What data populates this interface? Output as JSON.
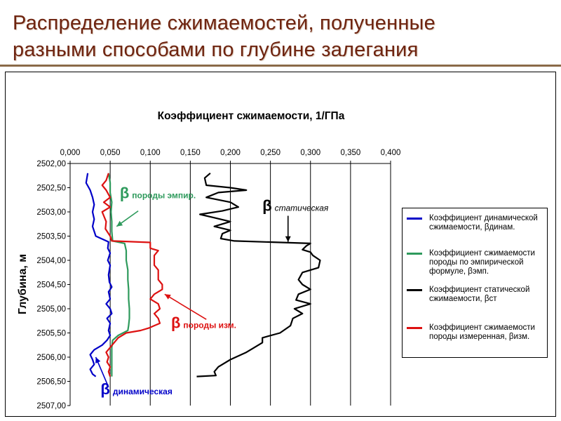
{
  "slide": {
    "title_line1": "Распределение сжимаемостей, полученные",
    "title_line2": "разными способами по глубине залегания"
  },
  "chart_data": {
    "type": "line",
    "title": "Коэффициент сжимаемости, 1/ГПа",
    "ylabel": "Глубина, м",
    "xlabel": "",
    "x_axis_position": "top",
    "y_inverted": true,
    "xlim": [
      0,
      0.4
    ],
    "ylim": [
      2502,
      2507
    ],
    "x_ticks": [
      "0,000",
      "0,050",
      "0,100",
      "0,150",
      "0,200",
      "0,250",
      "0,300",
      "0,350",
      "0,400"
    ],
    "y_ticks": [
      "2502,00",
      "2502,50",
      "2503,00",
      "2503,50",
      "2504,00",
      "2504,50",
      "2505,00",
      "2505,50",
      "2506,00",
      "2506,50",
      "2507,00"
    ],
    "grid": "vertical",
    "legend_position": "right",
    "series": [
      {
        "name": "Коэффициент динамической сжимаемости, βдинам.",
        "color": "#0000c8",
        "points": [
          [
            0.022,
            2502.2
          ],
          [
            0.02,
            2502.4
          ],
          [
            0.025,
            2502.55
          ],
          [
            0.028,
            2502.7
          ],
          [
            0.03,
            2502.85
          ],
          [
            0.028,
            2503.0
          ],
          [
            0.03,
            2503.15
          ],
          [
            0.028,
            2503.3
          ],
          [
            0.032,
            2503.5
          ],
          [
            0.048,
            2503.62
          ],
          [
            0.047,
            2503.75
          ],
          [
            0.05,
            2503.85
          ],
          [
            0.047,
            2504.0
          ],
          [
            0.05,
            2504.1
          ],
          [
            0.048,
            2504.3
          ],
          [
            0.049,
            2504.45
          ],
          [
            0.052,
            2504.55
          ],
          [
            0.048,
            2504.65
          ],
          [
            0.05,
            2504.8
          ],
          [
            0.045,
            2504.9
          ],
          [
            0.05,
            2505.0
          ],
          [
            0.052,
            2505.1
          ],
          [
            0.046,
            2505.2
          ],
          [
            0.05,
            2505.3
          ],
          [
            0.048,
            2505.45
          ],
          [
            0.05,
            2505.55
          ],
          [
            0.046,
            2505.65
          ],
          [
            0.04,
            2505.75
          ],
          [
            0.03,
            2505.85
          ],
          [
            0.025,
            2505.95
          ],
          [
            0.028,
            2506.05
          ],
          [
            0.03,
            2506.15
          ],
          [
            0.025,
            2506.25
          ],
          [
            0.028,
            2506.35
          ],
          [
            0.032,
            2506.4
          ]
        ]
      },
      {
        "name": "Коэффициент сжимаемости породы по эмпирической формуле, βэмп.",
        "color": "#2e9a5c",
        "points": [
          [
            0.048,
            2502.2
          ],
          [
            0.05,
            2502.4
          ],
          [
            0.05,
            2502.6
          ],
          [
            0.052,
            2502.8
          ],
          [
            0.051,
            2503.0
          ],
          [
            0.052,
            2503.2
          ],
          [
            0.052,
            2503.4
          ],
          [
            0.053,
            2503.6
          ],
          [
            0.068,
            2503.65
          ],
          [
            0.07,
            2503.8
          ],
          [
            0.07,
            2504.0
          ],
          [
            0.072,
            2504.2
          ],
          [
            0.072,
            2504.4
          ],
          [
            0.073,
            2504.6
          ],
          [
            0.073,
            2504.8
          ],
          [
            0.074,
            2505.0
          ],
          [
            0.074,
            2505.2
          ],
          [
            0.073,
            2505.35
          ],
          [
            0.072,
            2505.45
          ],
          [
            0.06,
            2505.55
          ],
          [
            0.053,
            2505.65
          ],
          [
            0.052,
            2505.8
          ],
          [
            0.052,
            2506.0
          ],
          [
            0.052,
            2506.2
          ],
          [
            0.052,
            2506.4
          ]
        ]
      },
      {
        "name": "Коэффициент статической сжимаемости, βст",
        "color": "#000000",
        "points": [
          [
            0.175,
            2502.2
          ],
          [
            0.168,
            2502.3
          ],
          [
            0.17,
            2502.45
          ],
          [
            0.2,
            2502.5
          ],
          [
            0.22,
            2502.55
          ],
          [
            0.185,
            2502.6
          ],
          [
            0.17,
            2502.7
          ],
          [
            0.2,
            2502.8
          ],
          [
            0.21,
            2502.9
          ],
          [
            0.19,
            2502.98
          ],
          [
            0.162,
            2503.05
          ],
          [
            0.18,
            2503.12
          ],
          [
            0.2,
            2503.2
          ],
          [
            0.18,
            2503.3
          ],
          [
            0.2,
            2503.38
          ],
          [
            0.19,
            2503.45
          ],
          [
            0.188,
            2503.55
          ],
          [
            0.205,
            2503.6
          ],
          [
            0.3,
            2503.65
          ],
          [
            0.295,
            2503.7
          ],
          [
            0.29,
            2503.78
          ],
          [
            0.3,
            2503.83
          ],
          [
            0.303,
            2503.9
          ],
          [
            0.312,
            2504.0
          ],
          [
            0.31,
            2504.15
          ],
          [
            0.29,
            2504.25
          ],
          [
            0.285,
            2504.4
          ],
          [
            0.29,
            2504.5
          ],
          [
            0.3,
            2504.6
          ],
          [
            0.285,
            2504.7
          ],
          [
            0.282,
            2504.82
          ],
          [
            0.3,
            2504.9
          ],
          [
            0.28,
            2505.0
          ],
          [
            0.29,
            2505.1
          ],
          [
            0.278,
            2505.2
          ],
          [
            0.275,
            2505.35
          ],
          [
            0.262,
            2505.5
          ],
          [
            0.24,
            2505.6
          ],
          [
            0.24,
            2505.7
          ],
          [
            0.23,
            2505.8
          ],
          [
            0.22,
            2505.9
          ],
          [
            0.2,
            2506.05
          ],
          [
            0.185,
            2506.2
          ],
          [
            0.18,
            2506.3
          ],
          [
            0.182,
            2506.38
          ],
          [
            0.158,
            2506.4
          ]
        ]
      },
      {
        "name": "Коэффициент сжимаемости породы измеренная, βизм.",
        "color": "#dd1111",
        "points": [
          [
            0.048,
            2502.2
          ],
          [
            0.045,
            2502.35
          ],
          [
            0.04,
            2502.45
          ],
          [
            0.045,
            2502.55
          ],
          [
            0.05,
            2502.7
          ],
          [
            0.042,
            2502.8
          ],
          [
            0.05,
            2502.9
          ],
          [
            0.04,
            2503.0
          ],
          [
            0.045,
            2503.2
          ],
          [
            0.044,
            2503.35
          ],
          [
            0.05,
            2503.5
          ],
          [
            0.052,
            2503.6
          ],
          [
            0.1,
            2503.63
          ],
          [
            0.1,
            2503.75
          ],
          [
            0.11,
            2503.8
          ],
          [
            0.105,
            2503.9
          ],
          [
            0.105,
            2504.1
          ],
          [
            0.11,
            2504.2
          ],
          [
            0.11,
            2504.4
          ],
          [
            0.115,
            2504.5
          ],
          [
            0.115,
            2504.6
          ],
          [
            0.105,
            2504.7
          ],
          [
            0.1,
            2504.8
          ],
          [
            0.11,
            2504.9
          ],
          [
            0.112,
            2505.0
          ],
          [
            0.105,
            2505.1
          ],
          [
            0.11,
            2505.2
          ],
          [
            0.112,
            2505.3
          ],
          [
            0.105,
            2505.35
          ],
          [
            0.098,
            2505.4
          ],
          [
            0.088,
            2505.45
          ],
          [
            0.07,
            2505.5
          ],
          [
            0.06,
            2505.6
          ],
          [
            0.055,
            2505.7
          ],
          [
            0.05,
            2505.8
          ],
          [
            0.045,
            2505.9
          ],
          [
            0.048,
            2506.0
          ],
          [
            0.046,
            2506.1
          ],
          [
            0.05,
            2506.2
          ],
          [
            0.048,
            2506.3
          ],
          [
            0.05,
            2506.4
          ]
        ]
      }
    ],
    "annotations": [
      {
        "symbol": "β",
        "text": "породы эмпир.",
        "color": "#2e9a5c",
        "x": 0.062,
        "y": 2502.72,
        "arrow_from": [
          0.085,
          2502.98
        ],
        "arrow_to": [
          0.058,
          2503.3
        ]
      },
      {
        "symbol": "β",
        "text": "статическая",
        "color": "#000000",
        "x": 0.24,
        "y": 2502.98,
        "arrow_from": [
          0.272,
          2503.08
        ],
        "arrow_to": [
          0.272,
          2503.62
        ]
      },
      {
        "symbol": "β",
        "text": "породы изм.",
        "color": "#dd1111",
        "x": 0.126,
        "y": 2505.4,
        "arrow_from": [
          0.17,
          2505.22
        ],
        "arrow_to": [
          0.118,
          2504.7
        ]
      },
      {
        "symbol": "β",
        "text": "динамическая",
        "color": "#0000c8",
        "x": 0.038,
        "y": 2506.77,
        "arrow_from": [
          0.048,
          2506.62
        ],
        "arrow_to": [
          0.032,
          2506.0
        ]
      }
    ]
  }
}
